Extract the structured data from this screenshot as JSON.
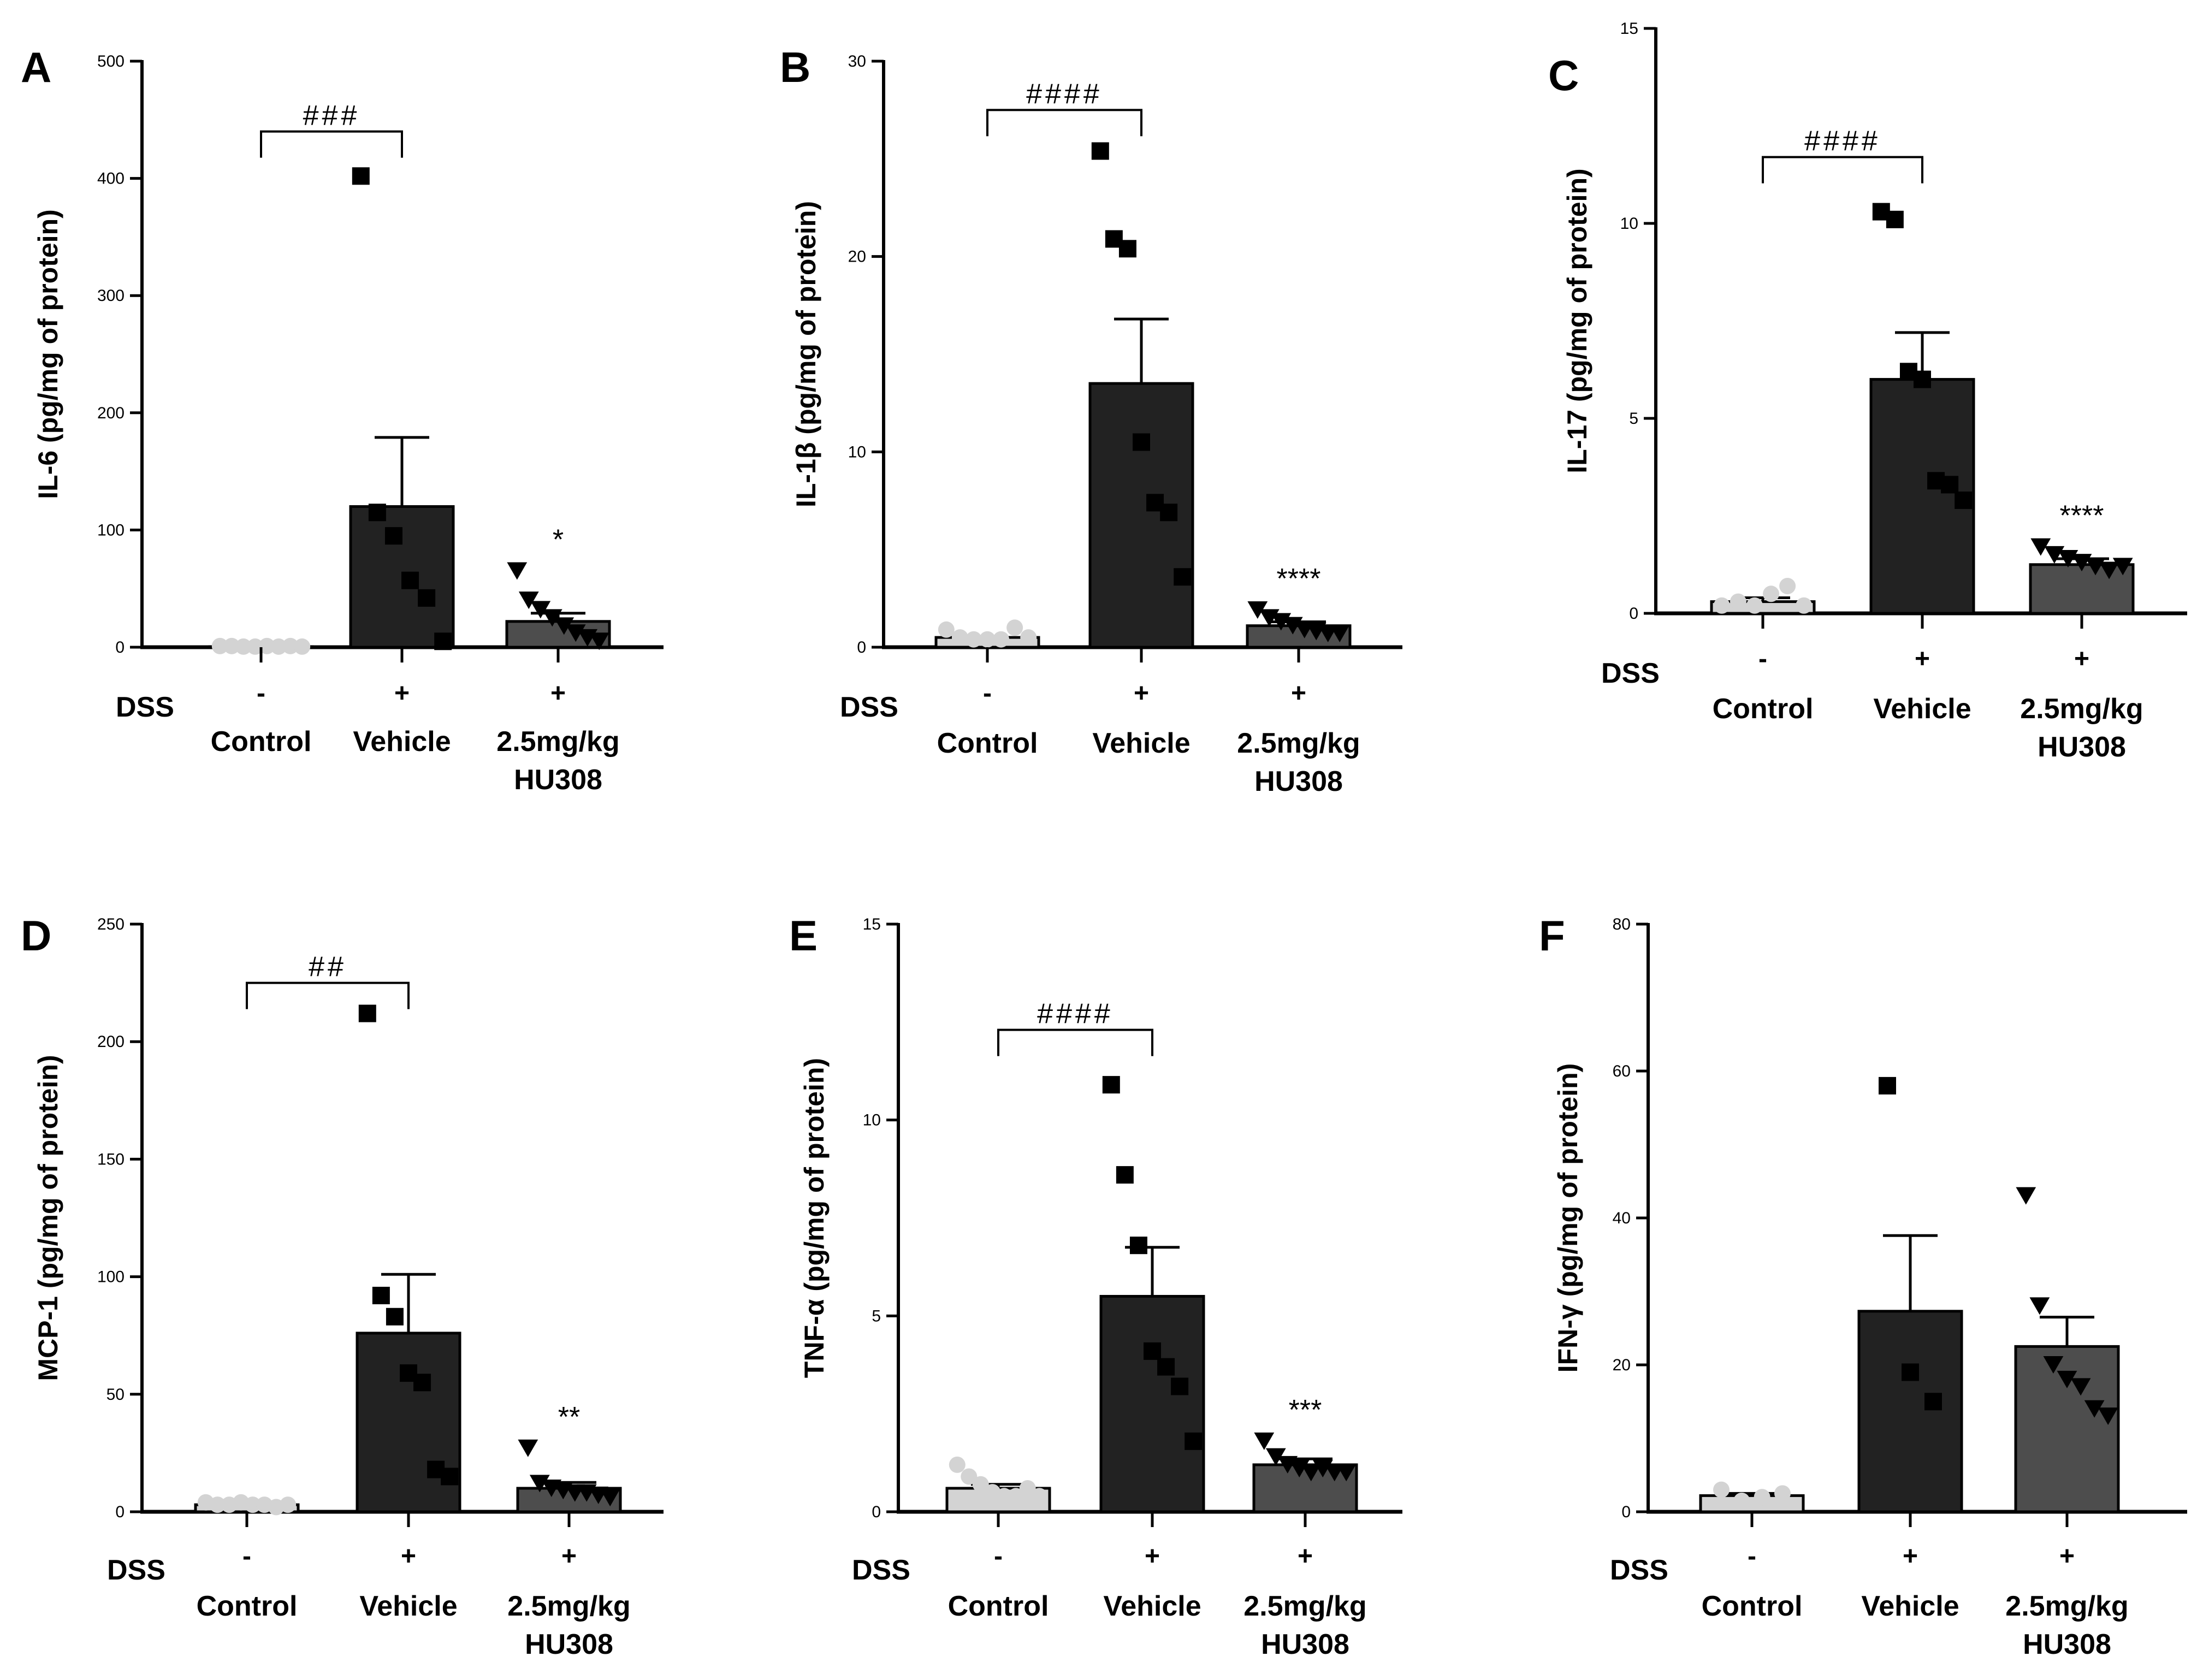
{
  "figure": {
    "dss_label": "DSS",
    "groups": [
      {
        "dss": "-",
        "label_lines": [
          "Control"
        ]
      },
      {
        "dss": "+",
        "label_lines": [
          "Vehicle"
        ]
      },
      {
        "dss": "+",
        "label_lines": [
          "2.5mg/kg",
          "HU308"
        ]
      }
    ],
    "colors": {
      "control": "#d3d3d3",
      "vehicle": "#222222",
      "hu308": "#4d4d4d",
      "axis": "#000000"
    },
    "markers": [
      "circle",
      "square",
      "triangle-down"
    ]
  },
  "chart_data": [
    {
      "panel": "A",
      "type": "bar",
      "ylabel": "IL-6 (pg/mg of protein)",
      "ylim": [
        0,
        500
      ],
      "yticks": [
        0,
        100,
        200,
        300,
        400,
        500
      ],
      "categories": [
        "Control",
        "Vehicle",
        "2.5mg/kg HU308"
      ],
      "values": [
        0.5,
        120,
        22
      ],
      "sem": [
        0,
        59,
        7
      ],
      "points": [
        [
          1,
          1,
          0.5,
          0.5,
          1,
          0.5,
          1,
          0.5
        ],
        [
          402,
          115,
          95,
          57,
          42,
          5
        ],
        [
          65,
          40,
          32,
          25,
          18,
          12,
          8,
          5
        ]
      ],
      "bracket": {
        "text": "###",
        "from": 0,
        "to": 1,
        "y": 440
      },
      "stars": [
        {
          "group": 2,
          "text": "*"
        }
      ]
    },
    {
      "panel": "B",
      "type": "bar",
      "ylabel": "IL-1β (pg/mg of protein)",
      "ylim": [
        0,
        30
      ],
      "yticks": [
        0,
        10,
        20,
        30
      ],
      "categories": [
        "Control",
        "Vehicle",
        "2.5mg/kg HU308"
      ],
      "values": [
        0.5,
        13.5,
        1.1
      ],
      "sem": [
        0,
        3.3,
        0.2
      ],
      "points": [
        [
          0.9,
          0.5,
          0.4,
          0.4,
          0.4,
          1.0,
          0.5
        ],
        [
          25.4,
          20.9,
          20.4,
          10.5,
          7.4,
          6.9,
          3.6
        ],
        [
          1.9,
          1.5,
          1.3,
          1.1,
          0.9,
          0.8,
          0.7,
          0.7
        ]
      ],
      "bracket": {
        "text": "####",
        "from": 0,
        "to": 1,
        "y": 27.5
      },
      "stars": [
        {
          "group": 2,
          "text": "****"
        }
      ]
    },
    {
      "panel": "C",
      "type": "bar",
      "ylabel": "IL-17 (pg/mg of protein)",
      "ylim": [
        0,
        15
      ],
      "yticks": [
        0,
        5,
        10,
        15
      ],
      "categories": [
        "Control",
        "Vehicle",
        "2.5mg/kg HU308"
      ],
      "values": [
        0.3,
        6.0,
        1.25
      ],
      "sem": [
        0.1,
        1.2,
        0.15
      ],
      "points": [
        [
          0.2,
          0.3,
          0.2,
          0.5,
          0.7,
          0.2
        ],
        [
          10.3,
          10.1,
          6.2,
          6.0,
          3.4,
          3.3,
          2.9
        ],
        [
          1.7,
          1.5,
          1.4,
          1.3,
          1.2,
          1.1,
          1.2
        ]
      ],
      "bracket": {
        "text": "####",
        "from": 0,
        "to": 1,
        "y": 11.7
      },
      "stars": [
        {
          "group": 2,
          "text": "****"
        }
      ]
    },
    {
      "panel": "D",
      "type": "bar",
      "ylabel": "MCP-1 (pg/mg of protein)",
      "ylim": [
        0,
        250
      ],
      "yticks": [
        0,
        50,
        100,
        150,
        200,
        250
      ],
      "categories": [
        "Control",
        "Vehicle",
        "2.5mg/kg HU308"
      ],
      "values": [
        3,
        76,
        10
      ],
      "sem": [
        0.5,
        25,
        2.5
      ],
      "points": [
        [
          4,
          3,
          3,
          4,
          3,
          3,
          2,
          3
        ],
        [
          212,
          92,
          83,
          59,
          55,
          18,
          15
        ],
        [
          27,
          12,
          10,
          9,
          8,
          8,
          7,
          6
        ]
      ],
      "bracket": {
        "text": "##",
        "from": 0,
        "to": 1,
        "y": 225
      },
      "stars": [
        {
          "group": 2,
          "text": "**"
        }
      ]
    },
    {
      "panel": "E",
      "type": "bar",
      "ylabel": "TNF-α (pg/mg of protein)",
      "ylim": [
        0,
        15
      ],
      "yticks": [
        0,
        5,
        10,
        15
      ],
      "categories": [
        "Control",
        "Vehicle",
        "2.5mg/kg HU308"
      ],
      "values": [
        0.6,
        5.5,
        1.2
      ],
      "sem": [
        0.1,
        1.25,
        0.15
      ],
      "points": [
        [
          1.2,
          0.9,
          0.7,
          0.5,
          0.4,
          0.4,
          0.6,
          0.4
        ],
        [
          10.9,
          8.6,
          6.8,
          4.1,
          3.7,
          3.2,
          1.8
        ],
        [
          1.8,
          1.4,
          1.2,
          1.1,
          1.0,
          1.1,
          1.0,
          1.0
        ]
      ],
      "bracket": {
        "text": "####",
        "from": 0,
        "to": 1,
        "y": 12.3
      },
      "stars": [
        {
          "group": 2,
          "text": "***"
        }
      ]
    },
    {
      "panel": "F",
      "type": "bar",
      "ylabel": "IFN-γ (pg/mg of protein)",
      "ylim": [
        0,
        80
      ],
      "yticks": [
        0,
        20,
        40,
        60,
        80
      ],
      "categories": [
        "Control",
        "Vehicle",
        "2.5mg/kg HU308"
      ],
      "values": [
        2.2,
        27.3,
        22.5
      ],
      "sem": [
        0.3,
        10.3,
        4.0
      ],
      "points": [
        [
          3.0,
          1.5,
          2.0,
          2.5
        ],
        [
          58,
          19,
          15
        ],
        [
          43,
          28,
          20,
          18,
          17,
          14,
          13
        ]
      ],
      "bracket": null,
      "stars": []
    }
  ]
}
